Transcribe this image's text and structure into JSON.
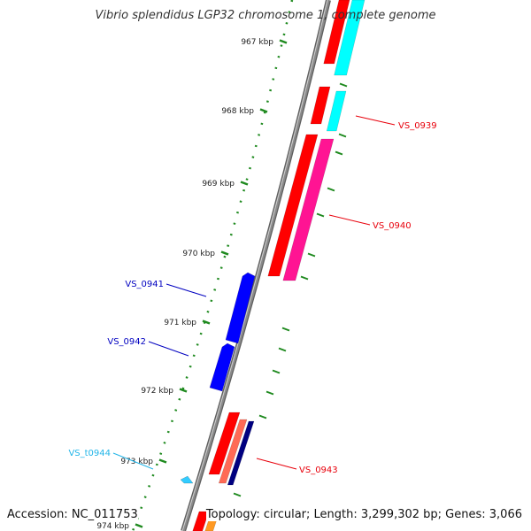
{
  "title": "Vibrio splendidus LGP32 chromosome 1, complete genome",
  "accession": "Accession: NC_011753",
  "topology": "Topology: circular; Length: 3,299,302 bp; Genes: 3,066",
  "ruler": {
    "tick_labels": [
      "967 kbp",
      "968 kbp",
      "969 kbp",
      "970 kbp",
      "971 kbp",
      "972 kbp",
      "973 kbp",
      "974 kbp"
    ]
  },
  "genes": [
    {
      "label": "VS_0939",
      "color": "#e8000b"
    },
    {
      "label": "VS_0940",
      "color": "#e8000b"
    },
    {
      "label": "VS_0941",
      "color": "#0000c0"
    },
    {
      "label": "VS_0942",
      "color": "#0000c0"
    },
    {
      "label": "VS_t0944",
      "color": "#22b5e8"
    },
    {
      "label": "VS_0943",
      "color": "#e8000b"
    }
  ],
  "colors": {
    "backbone": "#8a8a8a",
    "ruler": "#1f8a1f",
    "gene_red": "#ff0000",
    "cds_cyan": "#00ffff",
    "cds_magenta": "#ff1493",
    "gene_blue": "#0000ff",
    "trna_cyan": "#33ccff",
    "gene_salmon": "#ff6a55",
    "gene_navy": "#000080",
    "gene_orange": "#ff9922"
  }
}
